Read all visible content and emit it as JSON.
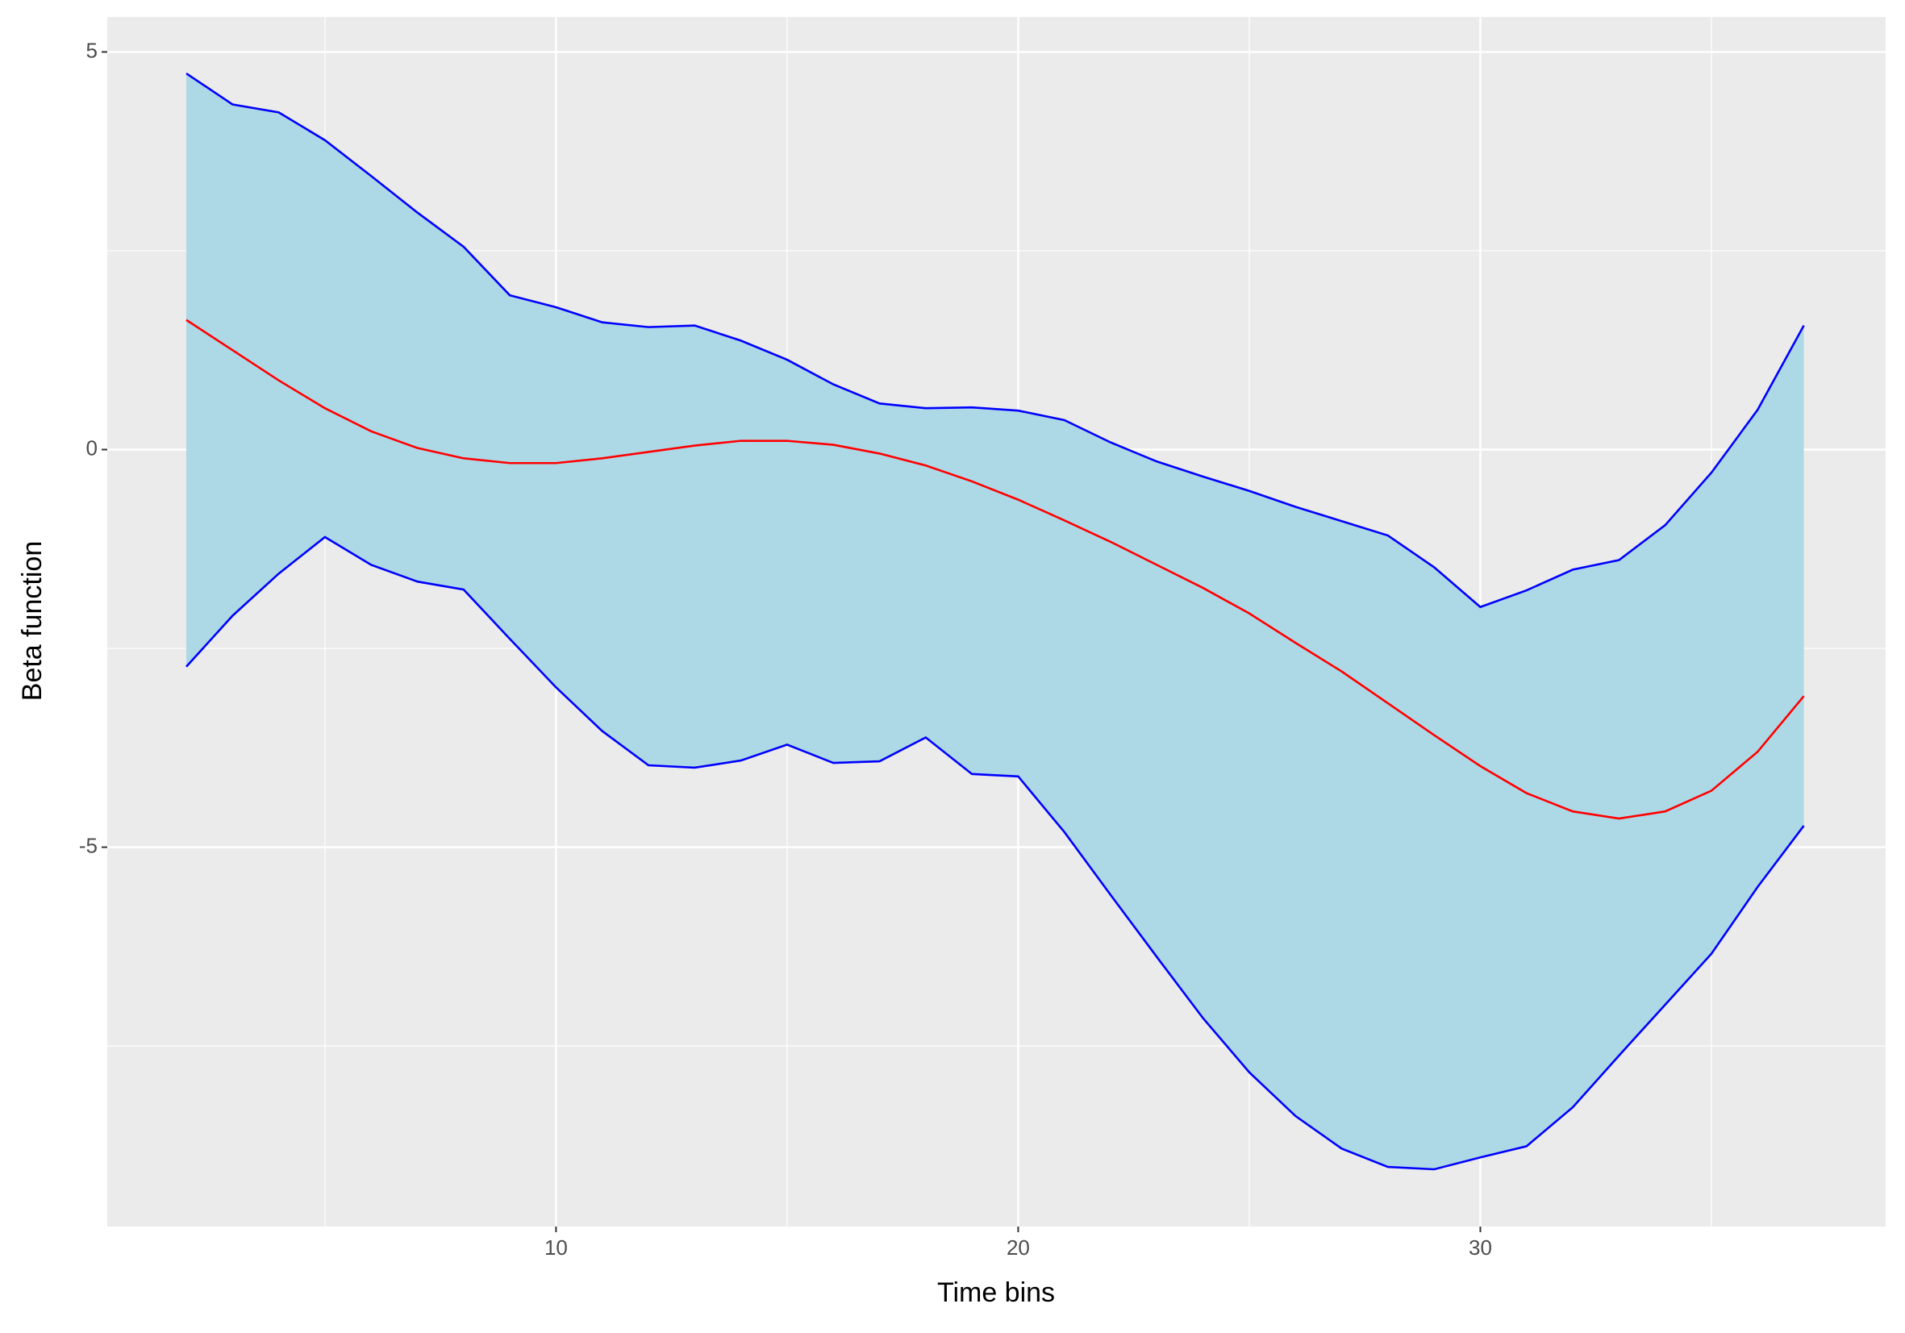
{
  "chart_data": {
    "type": "ribbon-line",
    "x_label": "Time bins",
    "y_label": "Beta function",
    "x": [
      2,
      3,
      4,
      5,
      6,
      7,
      8,
      9,
      10,
      11,
      12,
      13,
      14,
      15,
      16,
      17,
      18,
      19,
      20,
      21,
      22,
      23,
      24,
      25,
      26,
      27,
      28,
      29,
      30,
      31,
      32,
      33,
      34,
      35,
      36,
      37
    ],
    "series": [
      {
        "color": "#0000ff",
        "values": [
          4.73,
          4.34,
          4.24,
          3.89,
          3.44,
          2.98,
          2.55,
          1.94,
          1.79,
          1.6,
          1.54,
          1.56,
          1.37,
          1.13,
          0.82,
          0.58,
          0.52,
          0.53,
          0.49,
          0.37,
          0.09,
          -0.15,
          -0.34,
          -0.52,
          -0.72,
          -0.9,
          -1.08,
          -1.48,
          -1.98,
          -1.77,
          -1.51,
          -1.39,
          -0.95,
          -0.29,
          0.5,
          1.56
        ]
      },
      {
        "color": "#ff0000",
        "values": [
          1.63,
          1.25,
          0.87,
          0.52,
          0.23,
          0.02,
          -0.11,
          -0.17,
          -0.17,
          -0.11,
          -0.03,
          0.05,
          0.11,
          0.11,
          0.06,
          -0.05,
          -0.2,
          -0.4,
          -0.63,
          -0.89,
          -1.16,
          -1.45,
          -1.74,
          -2.06,
          -2.43,
          -2.79,
          -3.19,
          -3.59,
          -3.98,
          -4.32,
          -4.55,
          -4.64,
          -4.55,
          -4.29,
          -3.8,
          -3.1
        ]
      },
      {
        "color": "#0000ff",
        "values": [
          -2.73,
          -2.09,
          -1.56,
          -1.1,
          -1.45,
          -1.66,
          -1.76,
          -2.38,
          -2.99,
          -3.54,
          -3.97,
          -4.0,
          -3.91,
          -3.71,
          -3.94,
          -3.92,
          -3.62,
          -4.08,
          -4.11,
          -4.81,
          -5.6,
          -6.38,
          -7.15,
          -7.83,
          -8.38,
          -8.79,
          -9.02,
          -9.05,
          -8.9,
          -8.76,
          -8.27,
          -7.62,
          -6.98,
          -6.34,
          -5.5,
          -4.73
        ]
      }
    ],
    "ribbon_fill": "#add8e6",
    "xlim": [
      0.29,
      38.77
    ],
    "ylim": [
      -9.77,
      5.44
    ],
    "xticks": [
      10,
      20,
      30
    ],
    "yticks": [
      -5,
      0,
      5
    ],
    "x_minor_grid": [
      5,
      15,
      25,
      35
    ],
    "y_minor_grid": [
      -7.5,
      -2.5,
      2.5
    ],
    "panel_color": "#ebebeb",
    "grid": true
  }
}
